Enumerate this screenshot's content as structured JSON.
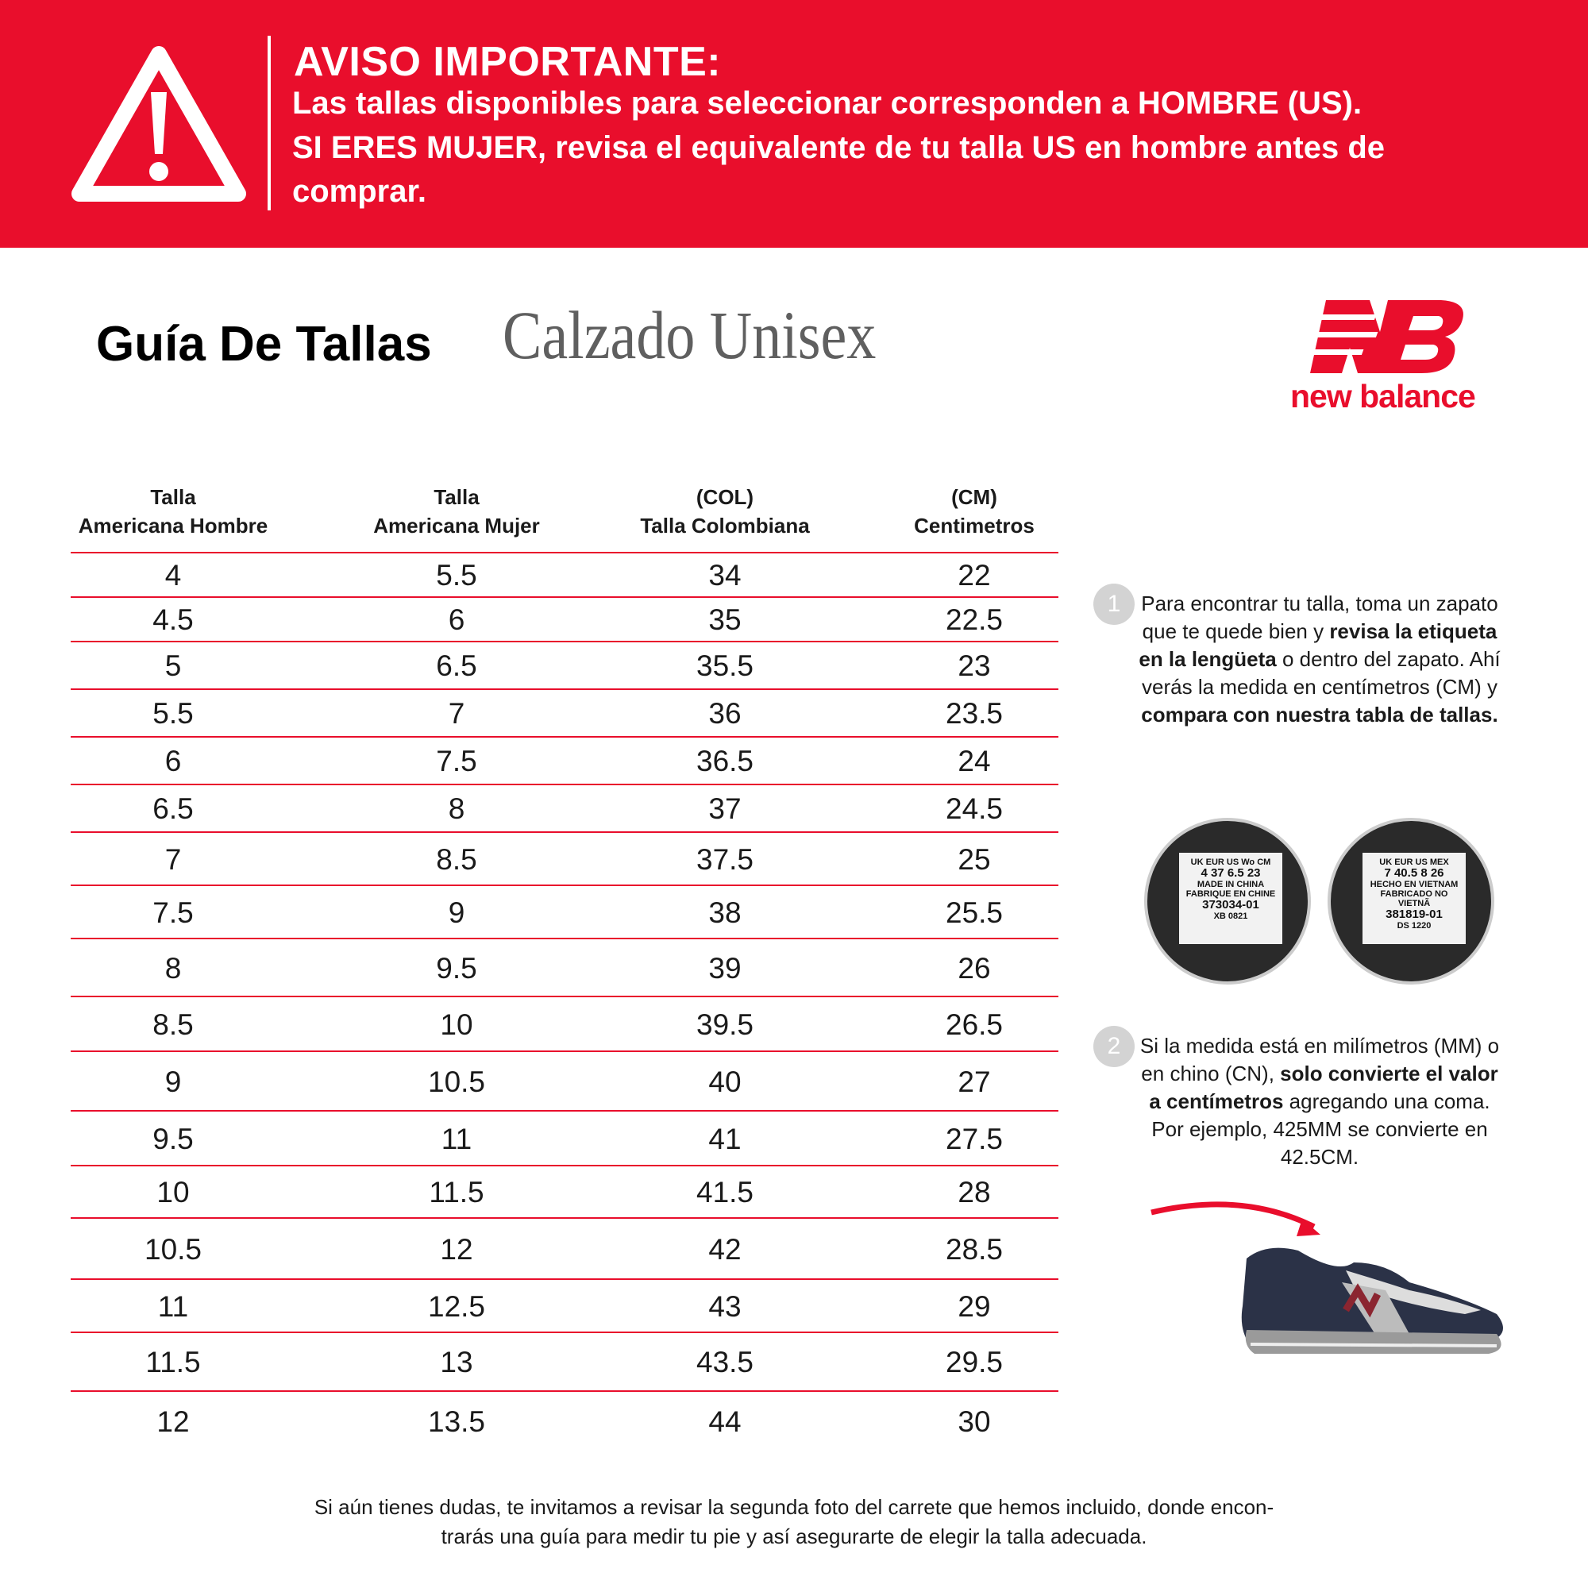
{
  "banner": {
    "icon": "warning-triangle-icon",
    "heading": "AVISO IMPORTANTE:",
    "lines": [
      "Las tallas disponibles para seleccionar corresponden a HOMBRE (US).",
      "SI ERES MUJER, revisa el equivalente de tu talla US en hombre antes de",
      "comprar."
    ],
    "color": "#e90e2c"
  },
  "header": {
    "title": "Guía De Tallas",
    "subtitle": "Calzado Unisex",
    "brand": "new balance"
  },
  "table": {
    "columns": [
      {
        "line1": "Talla",
        "line2": "Americana Hombre"
      },
      {
        "line1": "Talla",
        "line2": "Americana Mujer"
      },
      {
        "line1": "(COL)",
        "line2": "Talla Colombiana"
      },
      {
        "line1": "(CM)",
        "line2": "Centimetros"
      }
    ],
    "rows": [
      [
        "4",
        "5.5",
        "34",
        "22"
      ],
      [
        "4.5",
        "6",
        "35",
        "22.5"
      ],
      [
        "5",
        "6.5",
        "35.5",
        "23"
      ],
      [
        "5.5",
        "7",
        "36",
        "23.5"
      ],
      [
        "6",
        "7.5",
        "36.5",
        "24"
      ],
      [
        "6.5",
        "8",
        "37",
        "24.5"
      ],
      [
        "7",
        "8.5",
        "37.5",
        "25"
      ],
      [
        "7.5",
        "9",
        "38",
        "25.5"
      ],
      [
        "8",
        "9.5",
        "39",
        "26"
      ],
      [
        "8.5",
        "10",
        "39.5",
        "26.5"
      ],
      [
        "9",
        "10.5",
        "40",
        "27"
      ],
      [
        "9.5",
        "11",
        "41",
        "27.5"
      ],
      [
        "10",
        "11.5",
        "41.5",
        "28"
      ],
      [
        "10.5",
        "12",
        "42",
        "28.5"
      ],
      [
        "11",
        "12.5",
        "43",
        "29"
      ],
      [
        "11.5",
        "13",
        "43.5",
        "29.5"
      ],
      [
        "12",
        "13.5",
        "44",
        "30"
      ]
    ]
  },
  "steps": [
    {
      "number": "1",
      "html": "Para encontrar tu talla, toma un zapato que te quede bien y <b>revisa la etiqueta en la lengüeta</b> o dentro del zapato. Ahí verás la medida en centímetros (CM) y <b>compara con nuestra tabla de tallas.</b>"
    },
    {
      "number": "2",
      "html": "Si la medida está en milímetros (MM) o en chino (CN), <b>solo convierte el valor a centímetros</b> agregando una coma. Por ejemplo, 425MM se convierte en 42.5CM."
    }
  ],
  "labels": [
    {
      "lines": [
        "UK EUR US Wo CM",
        "4 37 6.5 23",
        "MADE IN CHINA",
        "FABRIQUE EN CHINE",
        "373034-01",
        "XB 0821"
      ]
    },
    {
      "lines": [
        "UK EUR US MEX",
        "7 40.5 8 26",
        "HECHO EN VIETNAM",
        "FABRICADO NO VIETNÃ",
        "381819-01",
        "DS 1220"
      ]
    }
  ],
  "footer": {
    "line1": "Si aún tienes dudas, te invitamos a revisar la segunda foto del carrete que hemos incluido, donde encon-",
    "line2": "trarás una guía para medir tu pie y así asegurarte de elegir la talla adecuada."
  }
}
